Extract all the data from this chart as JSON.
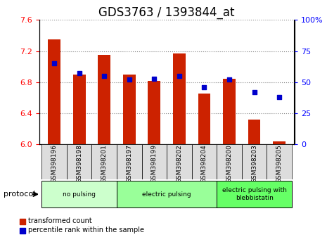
{
  "title": "GDS3763 / 1393844_at",
  "samples": [
    "GSM398196",
    "GSM398198",
    "GSM398201",
    "GSM398197",
    "GSM398199",
    "GSM398202",
    "GSM398204",
    "GSM398200",
    "GSM398203",
    "GSM398205"
  ],
  "red_values": [
    7.35,
    6.9,
    7.15,
    6.9,
    6.82,
    7.17,
    6.65,
    6.84,
    6.32,
    6.04
  ],
  "blue_values": [
    65,
    57,
    55,
    52,
    53,
    55,
    46,
    52,
    42,
    38
  ],
  "ylim_left": [
    6.0,
    7.6
  ],
  "ylim_right": [
    0,
    100
  ],
  "yticks_left": [
    6.0,
    6.4,
    6.8,
    7.2,
    7.6
  ],
  "yticks_right": [
    0,
    25,
    50,
    75,
    100
  ],
  "groups": [
    {
      "label": "no pulsing",
      "start": 0,
      "end": 3,
      "color": "#ccffcc"
    },
    {
      "label": "electric pulsing",
      "start": 3,
      "end": 7,
      "color": "#99ff99"
    },
    {
      "label": "electric pulsing with\nblebbistatin",
      "start": 7,
      "end": 10,
      "color": "#66ff66"
    }
  ],
  "bar_color": "#cc2200",
  "dot_color": "#0000cc",
  "bar_bottom": 6.0,
  "legend_red": "transformed count",
  "legend_blue": "percentile rank within the sample",
  "protocol_label": "protocol",
  "grid_color": "#888888",
  "title_fontsize": 12,
  "tick_fontsize": 8,
  "label_fontsize": 9
}
